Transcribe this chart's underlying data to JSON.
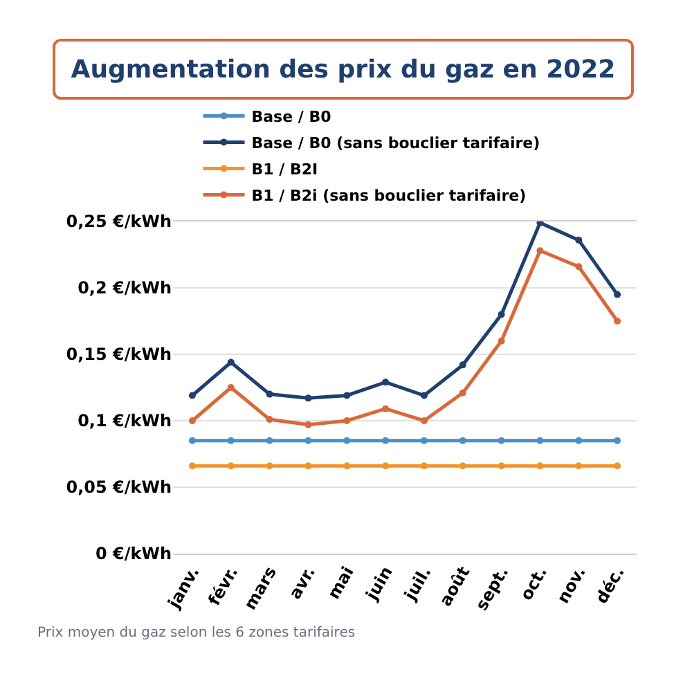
{
  "chart_data": {
    "type": "line",
    "title": "Augmentation des prix du gaz en 2022",
    "categories": [
      "janv.",
      "févr.",
      "mars",
      "avr.",
      "mai",
      "juin",
      "juil.",
      "août",
      "sept.",
      "oct.",
      "nov.",
      "déc."
    ],
    "series": [
      {
        "name": "Base / B0",
        "color": "#4a90c8",
        "values": [
          0.085,
          0.085,
          0.085,
          0.085,
          0.085,
          0.085,
          0.085,
          0.085,
          0.085,
          0.085,
          0.085,
          0.085
        ]
      },
      {
        "name": "Base / B0 (sans bouclier tarifaire)",
        "color": "#1f3f6e",
        "values": [
          0.119,
          0.144,
          0.12,
          0.117,
          0.119,
          0.129,
          0.119,
          0.142,
          0.18,
          0.249,
          0.236,
          0.195
        ]
      },
      {
        "name": "B1 / B2I",
        "color": "#f0952a",
        "values": [
          0.066,
          0.066,
          0.066,
          0.066,
          0.066,
          0.066,
          0.066,
          0.066,
          0.066,
          0.066,
          0.066,
          0.066
        ]
      },
      {
        "name": "B1 / B2i (sans bouclier tarifaire)",
        "color": "#d8693a",
        "values": [
          0.1,
          0.125,
          0.101,
          0.097,
          0.1,
          0.109,
          0.1,
          0.121,
          0.16,
          0.228,
          0.216,
          0.175
        ]
      }
    ],
    "ylim": [
      0,
      0.25
    ],
    "yticks": [
      {
        "value": 0,
        "label": "0 €/kWh"
      },
      {
        "value": 0.05,
        "label": "0,05 €/kWh"
      },
      {
        "value": 0.1,
        "label": "0,1 €/kWh"
      },
      {
        "value": 0.15,
        "label": "0,15 €/kWh"
      },
      {
        "value": 0.2,
        "label": "0,2 €/kWh"
      },
      {
        "value": 0.25,
        "label": "0,25 €/kWh"
      }
    ],
    "grid": "y",
    "legend": "top",
    "marker": "circle",
    "line_style": "solid",
    "annotations": [
      "Prix moyen du gaz selon les 6 zones tarifaires"
    ]
  }
}
